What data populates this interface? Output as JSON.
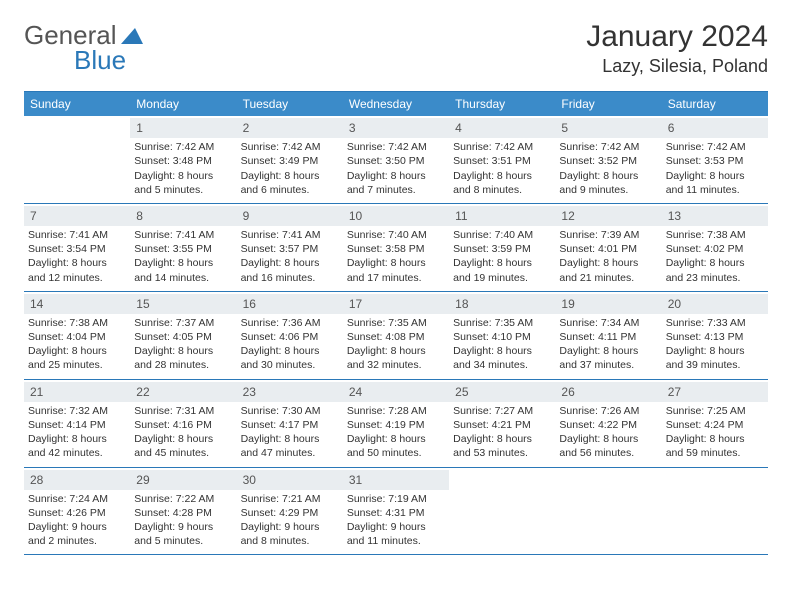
{
  "logo": {
    "word1": "General",
    "word2": "Blue",
    "color_general": "#555555",
    "color_blue": "#2a78b8"
  },
  "title": "January 2024",
  "location": "Lazy, Silesia, Poland",
  "colors": {
    "header_bg": "#3b8bc9",
    "header_text": "#ffffff",
    "border": "#2a78b8",
    "daynum_bg": "#e9edf0",
    "text": "#333333"
  },
  "day_names": [
    "Sunday",
    "Monday",
    "Tuesday",
    "Wednesday",
    "Thursday",
    "Friday",
    "Saturday"
  ],
  "leading_blanks": 1,
  "days": [
    {
      "n": 1,
      "sunrise": "7:42 AM",
      "sunset": "3:48 PM",
      "daylight": "8 hours and 5 minutes."
    },
    {
      "n": 2,
      "sunrise": "7:42 AM",
      "sunset": "3:49 PM",
      "daylight": "8 hours and 6 minutes."
    },
    {
      "n": 3,
      "sunrise": "7:42 AM",
      "sunset": "3:50 PM",
      "daylight": "8 hours and 7 minutes."
    },
    {
      "n": 4,
      "sunrise": "7:42 AM",
      "sunset": "3:51 PM",
      "daylight": "8 hours and 8 minutes."
    },
    {
      "n": 5,
      "sunrise": "7:42 AM",
      "sunset": "3:52 PM",
      "daylight": "8 hours and 9 minutes."
    },
    {
      "n": 6,
      "sunrise": "7:42 AM",
      "sunset": "3:53 PM",
      "daylight": "8 hours and 11 minutes."
    },
    {
      "n": 7,
      "sunrise": "7:41 AM",
      "sunset": "3:54 PM",
      "daylight": "8 hours and 12 minutes."
    },
    {
      "n": 8,
      "sunrise": "7:41 AM",
      "sunset": "3:55 PM",
      "daylight": "8 hours and 14 minutes."
    },
    {
      "n": 9,
      "sunrise": "7:41 AM",
      "sunset": "3:57 PM",
      "daylight": "8 hours and 16 minutes."
    },
    {
      "n": 10,
      "sunrise": "7:40 AM",
      "sunset": "3:58 PM",
      "daylight": "8 hours and 17 minutes."
    },
    {
      "n": 11,
      "sunrise": "7:40 AM",
      "sunset": "3:59 PM",
      "daylight": "8 hours and 19 minutes."
    },
    {
      "n": 12,
      "sunrise": "7:39 AM",
      "sunset": "4:01 PM",
      "daylight": "8 hours and 21 minutes."
    },
    {
      "n": 13,
      "sunrise": "7:38 AM",
      "sunset": "4:02 PM",
      "daylight": "8 hours and 23 minutes."
    },
    {
      "n": 14,
      "sunrise": "7:38 AM",
      "sunset": "4:04 PM",
      "daylight": "8 hours and 25 minutes."
    },
    {
      "n": 15,
      "sunrise": "7:37 AM",
      "sunset": "4:05 PM",
      "daylight": "8 hours and 28 minutes."
    },
    {
      "n": 16,
      "sunrise": "7:36 AM",
      "sunset": "4:06 PM",
      "daylight": "8 hours and 30 minutes."
    },
    {
      "n": 17,
      "sunrise": "7:35 AM",
      "sunset": "4:08 PM",
      "daylight": "8 hours and 32 minutes."
    },
    {
      "n": 18,
      "sunrise": "7:35 AM",
      "sunset": "4:10 PM",
      "daylight": "8 hours and 34 minutes."
    },
    {
      "n": 19,
      "sunrise": "7:34 AM",
      "sunset": "4:11 PM",
      "daylight": "8 hours and 37 minutes."
    },
    {
      "n": 20,
      "sunrise": "7:33 AM",
      "sunset": "4:13 PM",
      "daylight": "8 hours and 39 minutes."
    },
    {
      "n": 21,
      "sunrise": "7:32 AM",
      "sunset": "4:14 PM",
      "daylight": "8 hours and 42 minutes."
    },
    {
      "n": 22,
      "sunrise": "7:31 AM",
      "sunset": "4:16 PM",
      "daylight": "8 hours and 45 minutes."
    },
    {
      "n": 23,
      "sunrise": "7:30 AM",
      "sunset": "4:17 PM",
      "daylight": "8 hours and 47 minutes."
    },
    {
      "n": 24,
      "sunrise": "7:28 AM",
      "sunset": "4:19 PM",
      "daylight": "8 hours and 50 minutes."
    },
    {
      "n": 25,
      "sunrise": "7:27 AM",
      "sunset": "4:21 PM",
      "daylight": "8 hours and 53 minutes."
    },
    {
      "n": 26,
      "sunrise": "7:26 AM",
      "sunset": "4:22 PM",
      "daylight": "8 hours and 56 minutes."
    },
    {
      "n": 27,
      "sunrise": "7:25 AM",
      "sunset": "4:24 PM",
      "daylight": "8 hours and 59 minutes."
    },
    {
      "n": 28,
      "sunrise": "7:24 AM",
      "sunset": "4:26 PM",
      "daylight": "9 hours and 2 minutes."
    },
    {
      "n": 29,
      "sunrise": "7:22 AM",
      "sunset": "4:28 PM",
      "daylight": "9 hours and 5 minutes."
    },
    {
      "n": 30,
      "sunrise": "7:21 AM",
      "sunset": "4:29 PM",
      "daylight": "9 hours and 8 minutes."
    },
    {
      "n": 31,
      "sunrise": "7:19 AM",
      "sunset": "4:31 PM",
      "daylight": "9 hours and 11 minutes."
    }
  ],
  "labels": {
    "sunrise": "Sunrise:",
    "sunset": "Sunset:",
    "daylight": "Daylight:"
  }
}
